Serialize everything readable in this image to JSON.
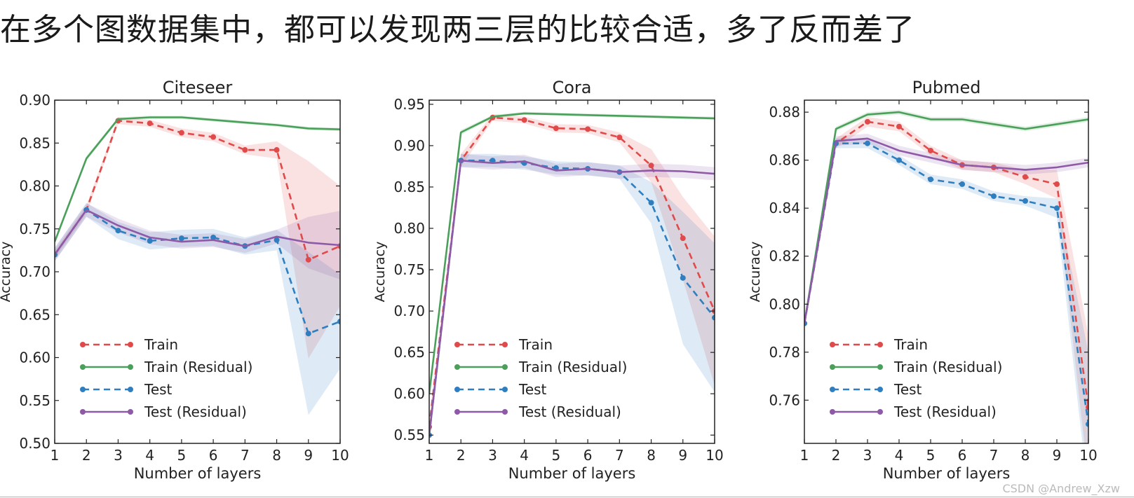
{
  "headline": "在多个图数据集中，都可以发现两三层的比较合适，多了反而差了",
  "watermark": "CSDN @Andrew_Xzw",
  "colors": {
    "train": "#e04a4a",
    "train_residual": "#4aa05a",
    "test": "#2f7fc0",
    "test_residual": "#8e5aa8"
  },
  "legend_labels": [
    "Train",
    "Train (Residual)",
    "Test",
    "Test (Residual)"
  ],
  "chart_data": [
    {
      "type": "line",
      "title": "Citeseer",
      "xlabel": "Number of layers",
      "ylabel": "Accuracy",
      "x": [
        1,
        2,
        3,
        4,
        5,
        6,
        7,
        8,
        9,
        10
      ],
      "xlim": [
        1,
        10
      ],
      "ylim": [
        0.5,
        0.9
      ],
      "yticks": [
        0.5,
        0.55,
        0.6,
        0.65,
        0.7,
        0.75,
        0.8,
        0.85,
        0.9
      ],
      "ytick_labels": [
        "0.50",
        "0.55",
        "0.60",
        "0.65",
        "0.70",
        "0.75",
        "0.80",
        "0.85",
        "0.90"
      ],
      "legend_position": "lower-left",
      "series": [
        {
          "name": "Train",
          "style": "dashed",
          "markers": true,
          "values": [
            0.72,
            0.772,
            0.876,
            0.873,
            0.862,
            0.857,
            0.842,
            0.842,
            0.714,
            0.73
          ],
          "band": [
            0.005,
            0.005,
            0.004,
            0.004,
            0.005,
            0.005,
            0.005,
            0.01,
            0.115,
            0.07
          ]
        },
        {
          "name": "Train (Residual)",
          "style": "solid",
          "markers": false,
          "values": [
            0.735,
            0.832,
            0.878,
            0.88,
            0.88,
            0.877,
            0.874,
            0.871,
            0.867,
            0.866
          ],
          "band": [
            0.003,
            0.003,
            0.002,
            0.002,
            0.002,
            0.002,
            0.002,
            0.002,
            0.002,
            0.002
          ]
        },
        {
          "name": "Test",
          "style": "dashed",
          "markers": true,
          "values": [
            0.72,
            0.772,
            0.748,
            0.736,
            0.739,
            0.74,
            0.73,
            0.737,
            0.628,
            0.642
          ],
          "band": [
            0.008,
            0.008,
            0.01,
            0.01,
            0.01,
            0.01,
            0.01,
            0.012,
            0.095,
            0.055
          ]
        },
        {
          "name": "Test (Residual)",
          "style": "solid",
          "markers": false,
          "values": [
            0.72,
            0.772,
            0.754,
            0.74,
            0.735,
            0.737,
            0.73,
            0.741,
            0.734,
            0.731
          ],
          "band": [
            0.008,
            0.008,
            0.008,
            0.008,
            0.008,
            0.008,
            0.008,
            0.008,
            0.03,
            0.04
          ]
        }
      ]
    },
    {
      "type": "line",
      "title": "Cora",
      "xlabel": "Number of layers",
      "ylabel": "Accuracy",
      "x": [
        1,
        2,
        3,
        4,
        5,
        6,
        7,
        8,
        9,
        10
      ],
      "xlim": [
        1,
        10
      ],
      "ylim": [
        0.54,
        0.955
      ],
      "yticks": [
        0.55,
        0.6,
        0.65,
        0.7,
        0.75,
        0.8,
        0.85,
        0.9,
        0.95
      ],
      "ytick_labels": [
        "0.55",
        "0.60",
        "0.65",
        "0.70",
        "0.75",
        "0.80",
        "0.85",
        "0.90",
        "0.95"
      ],
      "legend_position": "lower-left",
      "series": [
        {
          "name": "Train",
          "style": "dashed",
          "markers": true,
          "values": [
            0.56,
            0.882,
            0.934,
            0.931,
            0.921,
            0.92,
            0.91,
            0.876,
            0.788,
            0.7
          ],
          "band": [
            0.01,
            0.008,
            0.004,
            0.004,
            0.005,
            0.005,
            0.006,
            0.02,
            0.05,
            0.09
          ]
        },
        {
          "name": "Train (Residual)",
          "style": "solid",
          "markers": false,
          "values": [
            0.6,
            0.916,
            0.935,
            0.939,
            0.938,
            0.937,
            0.936,
            0.935,
            0.934,
            0.933
          ],
          "band": [
            0.005,
            0.003,
            0.002,
            0.002,
            0.002,
            0.002,
            0.002,
            0.002,
            0.002,
            0.002
          ]
        },
        {
          "name": "Test",
          "style": "dashed",
          "markers": true,
          "values": [
            0.55,
            0.882,
            0.882,
            0.879,
            0.873,
            0.872,
            0.868,
            0.831,
            0.74,
            0.692
          ],
          "band": [
            0.01,
            0.008,
            0.008,
            0.008,
            0.008,
            0.008,
            0.008,
            0.025,
            0.08,
            0.09
          ]
        },
        {
          "name": "Test (Residual)",
          "style": "solid",
          "markers": false,
          "values": [
            0.55,
            0.882,
            0.879,
            0.881,
            0.87,
            0.872,
            0.868,
            0.87,
            0.869,
            0.866
          ],
          "band": [
            0.01,
            0.008,
            0.008,
            0.008,
            0.008,
            0.008,
            0.008,
            0.008,
            0.008,
            0.008
          ]
        }
      ]
    },
    {
      "type": "line",
      "title": "Pubmed",
      "xlabel": "Number of layers",
      "ylabel": "Accuracy",
      "x": [
        1,
        2,
        3,
        4,
        5,
        6,
        7,
        8,
        9,
        10
      ],
      "xlim": [
        1,
        10
      ],
      "ylim": [
        0.742,
        0.885
      ],
      "yticks": [
        0.76,
        0.78,
        0.8,
        0.82,
        0.84,
        0.86,
        0.88
      ],
      "ytick_labels": [
        "0.76",
        "0.78",
        "0.80",
        "0.82",
        "0.84",
        "0.86",
        "0.88"
      ],
      "legend_position": "lower-left",
      "series": [
        {
          "name": "Train",
          "style": "dashed",
          "markers": true,
          "values": [
            0.792,
            0.867,
            0.876,
            0.874,
            0.864,
            0.858,
            0.857,
            0.853,
            0.85,
            0.757
          ],
          "band": [
            0.002,
            0.002,
            0.002,
            0.002,
            0.002,
            0.002,
            0.002,
            0.003,
            0.006,
            0.03
          ]
        },
        {
          "name": "Train (Residual)",
          "style": "solid",
          "markers": false,
          "values": [
            0.792,
            0.873,
            0.879,
            0.88,
            0.877,
            0.877,
            0.875,
            0.873,
            0.875,
            0.877
          ],
          "band": [
            0.002,
            0.001,
            0.001,
            0.001,
            0.001,
            0.001,
            0.001,
            0.001,
            0.001,
            0.001
          ]
        },
        {
          "name": "Test",
          "style": "dashed",
          "markers": true,
          "values": [
            0.792,
            0.867,
            0.867,
            0.86,
            0.852,
            0.85,
            0.845,
            0.843,
            0.84,
            0.75
          ],
          "band": [
            0.002,
            0.002,
            0.002,
            0.002,
            0.002,
            0.002,
            0.002,
            0.002,
            0.004,
            0.03
          ]
        },
        {
          "name": "Test (Residual)",
          "style": "solid",
          "markers": false,
          "values": [
            0.792,
            0.868,
            0.869,
            0.864,
            0.861,
            0.858,
            0.857,
            0.856,
            0.857,
            0.859
          ],
          "band": [
            0.002,
            0.002,
            0.002,
            0.002,
            0.002,
            0.002,
            0.002,
            0.002,
            0.002,
            0.002
          ]
        }
      ]
    }
  ]
}
